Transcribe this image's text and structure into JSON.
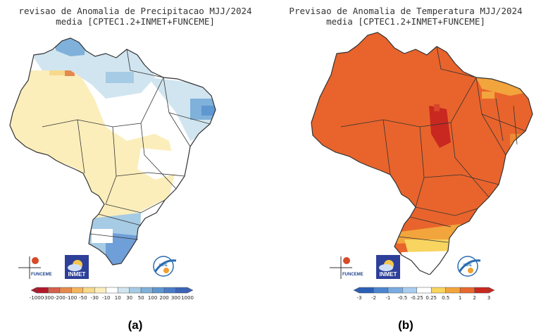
{
  "panel_a": {
    "title_line1": "revisao de Anomalia de Precipitacao MJJ/2024",
    "title_line2": "media [CPTEC1.2+INMET+FUNCEME]",
    "figure_label": "(a)",
    "colorbar": {
      "labels": [
        "-1000",
        "-300",
        "-200",
        "-100",
        "-50",
        "-30",
        "-10",
        "10",
        "30",
        "50",
        "100",
        "200",
        "300",
        "1000"
      ],
      "colors": [
        "#b2182b",
        "#d6604d",
        "#e58a4e",
        "#f4b55d",
        "#f7d98b",
        "#fbeebb",
        "#ffffff",
        "#d1e5f0",
        "#a6cbe4",
        "#7fb1da",
        "#5f97d1",
        "#4b7cc6",
        "#3b64b8"
      ]
    },
    "logos": {
      "funceme": "FUNCEME",
      "inmet": "INMET",
      "inpe": "INPE"
    }
  },
  "panel_b": {
    "title_line1": "Previsao de Anomalia de Temperatura MJJ/2024",
    "title_line2": "media [CPTEC1.2+INMET+FUNCEME]",
    "figure_label": "(b)",
    "colorbar": {
      "labels": [
        "-3",
        "-2",
        "-1",
        "-0.5",
        "-0.25",
        "0.25",
        "0.5",
        "1",
        "2",
        "3"
      ],
      "colors": [
        "#2b5fb5",
        "#4c86d0",
        "#79abe2",
        "#a9cdf0",
        "#ffffff",
        "#f8d460",
        "#f2a53c",
        "#e8682e",
        "#c8281f"
      ]
    },
    "logos": {
      "funceme": "FUNCEME",
      "inmet": "INMET",
      "inpe": "INPE"
    }
  },
  "colors": {
    "pale_yellow": "#fbeebb",
    "light_blue": "#a6cbe4",
    "mid_blue": "#6f9fd8",
    "dark_orange_red": "#e8642c",
    "dark_red": "#c8281f",
    "orange": "#f2a53c",
    "border": "#333333"
  }
}
